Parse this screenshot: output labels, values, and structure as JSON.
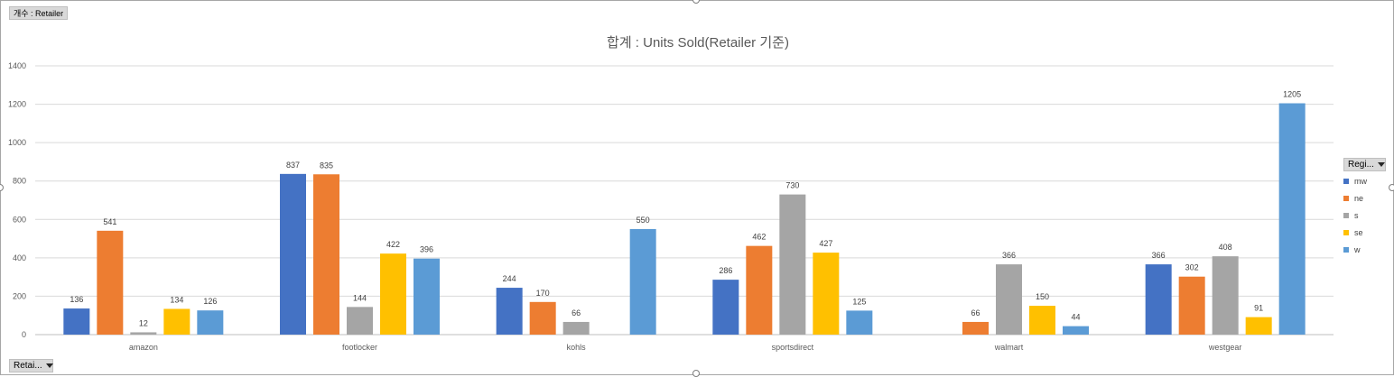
{
  "filter_pills": {
    "top_filter": "개수 : Retailer",
    "axis_field": "Retai..."
  },
  "legend_field": "Regi...",
  "colors": {
    "mw": "#4472c4",
    "ne": "#ed7d31",
    "s": "#a5a5a5",
    "se": "#ffc000",
    "w": "#5b9bd5",
    "grid": "#d9d9d9",
    "axis_text": "#595959"
  },
  "chart_data": {
    "type": "bar",
    "title": "합계 : Units Sold(Retailer 기준)",
    "xlabel": "",
    "ylabel": "",
    "ylim": [
      0,
      1400
    ],
    "yticks": [
      "0",
      "200",
      "400",
      "600",
      "800",
      "1000",
      "1200",
      "1400"
    ],
    "grid": true,
    "legend_position": "right",
    "categories": [
      "amazon",
      "footlocker",
      "kohls",
      "sportsdirect",
      "walmart",
      "westgear"
    ],
    "series": [
      {
        "name": "mw",
        "values": [
          136,
          837,
          244,
          286,
          null,
          366
        ]
      },
      {
        "name": "ne",
        "values": [
          541,
          835,
          170,
          462,
          66,
          302
        ]
      },
      {
        "name": "s",
        "values": [
          12,
          144,
          66,
          730,
          366,
          408
        ]
      },
      {
        "name": "se",
        "values": [
          134,
          422,
          null,
          427,
          150,
          91
        ]
      },
      {
        "name": "w",
        "values": [
          126,
          396,
          550,
          125,
          44,
          1205
        ]
      }
    ]
  }
}
